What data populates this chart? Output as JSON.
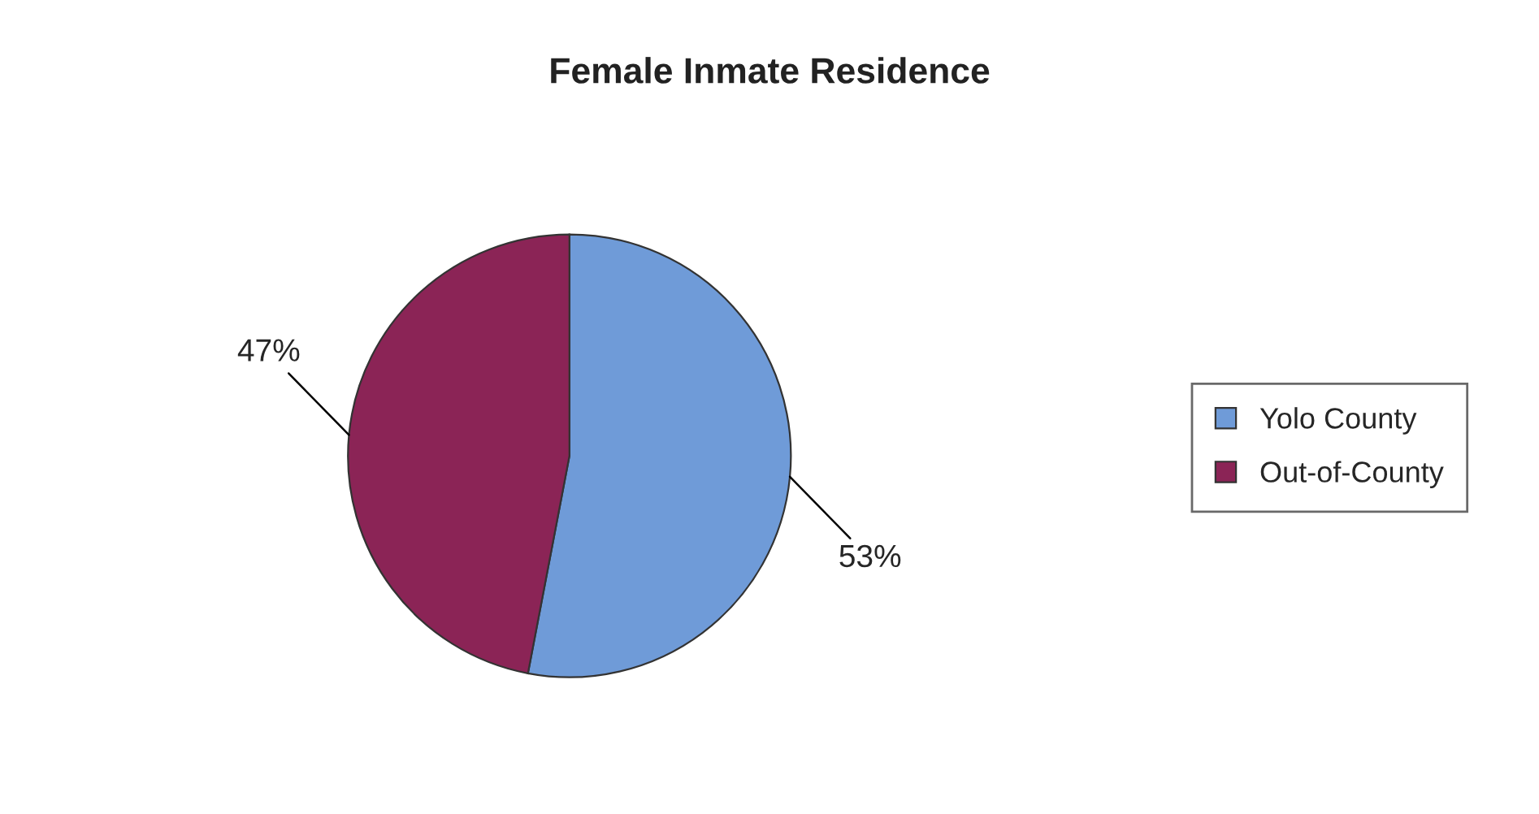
{
  "chart_data": {
    "type": "pie",
    "title": "Female Inmate Residence",
    "categories": [
      "Yolo County",
      "Out-of-County"
    ],
    "values": [
      53,
      47
    ],
    "colors": [
      "#6f9bd8",
      "#8b2456"
    ],
    "value_labels": [
      "53%",
      "47%"
    ],
    "legend": "right"
  }
}
